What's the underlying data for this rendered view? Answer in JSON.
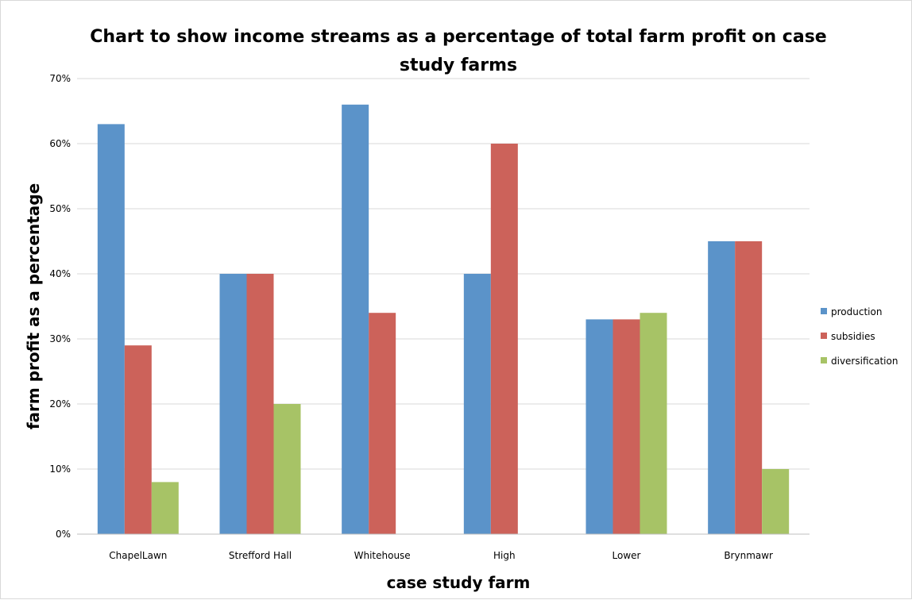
{
  "chart_data": {
    "type": "bar",
    "title_lines": [
      "Chart to show income streams as a percentage of total farm profit on case",
      "study farms"
    ],
    "xlabel": "case study farm",
    "ylabel": "farm profit as a percentage",
    "categories": [
      "ChapelLawn",
      "Strefford Hall",
      "Whitehouse",
      "High",
      "Lower",
      "Brynmawr"
    ],
    "series": [
      {
        "name": "production",
        "color": "#5b93c9",
        "values": [
          63,
          40,
          66,
          40,
          33,
          45
        ]
      },
      {
        "name": "subsidies",
        "color": "#cc625a",
        "values": [
          29,
          40,
          34,
          60,
          33,
          45
        ]
      },
      {
        "name": "diversification",
        "color": "#a7c366",
        "values": [
          8,
          20,
          0,
          0,
          34,
          10
        ]
      }
    ],
    "ylim": [
      0,
      70
    ],
    "yticks": [
      0,
      10,
      20,
      30,
      40,
      50,
      60,
      70
    ],
    "ytick_labels": [
      "0%",
      "10%",
      "20%",
      "30%",
      "40%",
      "50%",
      "60%",
      "70%"
    ],
    "grid": true,
    "legend_position": "right"
  }
}
